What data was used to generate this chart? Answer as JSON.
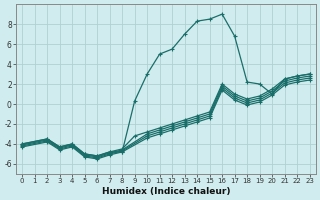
{
  "xlabel": "Humidex (Indice chaleur)",
  "background_color": "#d0ecee",
  "grid_color": "#b0d0d2",
  "line_color": "#1a6e6a",
  "xlim": [
    -0.5,
    23.5
  ],
  "ylim": [
    -7,
    10
  ],
  "yticks": [
    -6,
    -4,
    -2,
    0,
    2,
    4,
    6,
    8
  ],
  "xticks": [
    0,
    1,
    2,
    3,
    4,
    5,
    6,
    7,
    8,
    9,
    10,
    11,
    12,
    13,
    14,
    15,
    16,
    17,
    18,
    19,
    20,
    21,
    22,
    23
  ],
  "main_x": [
    0,
    2,
    3,
    4,
    5,
    6,
    7,
    8,
    9,
    10,
    11,
    12,
    13,
    14,
    15,
    16,
    17,
    18,
    19,
    20,
    21,
    22,
    23
  ],
  "main_y": [
    -4,
    -3.5,
    -4.3,
    -4.0,
    -5.0,
    -5.2,
    -4.8,
    -4.8,
    0.3,
    3.0,
    5.0,
    5.5,
    7.0,
    8.3,
    8.5,
    9.0,
    6.8,
    2.2,
    2.0,
    1.0,
    2.5,
    2.8,
    3.0
  ],
  "lin1_x": [
    0,
    2,
    3,
    4,
    5,
    6,
    7,
    8,
    9,
    10,
    11,
    12,
    13,
    14,
    15,
    16,
    17,
    18,
    19,
    20,
    21,
    22,
    23
  ],
  "lin1_y": [
    -4,
    -3.5,
    -4.3,
    -4.0,
    -5.0,
    -5.2,
    -4.8,
    -4.5,
    -3.2,
    -2.8,
    -2.4,
    -2.0,
    -1.6,
    -1.2,
    -0.8,
    2.0,
    1.0,
    0.5,
    0.8,
    1.5,
    2.5,
    2.8,
    3.0
  ],
  "lin2_x": [
    0,
    2,
    3,
    4,
    5,
    6,
    7,
    8,
    10,
    11,
    12,
    13,
    14,
    15,
    16,
    17,
    18,
    19,
    20,
    21,
    22,
    23
  ],
  "lin2_y": [
    -4.1,
    -3.6,
    -4.4,
    -4.1,
    -5.1,
    -5.3,
    -4.9,
    -4.6,
    -3.0,
    -2.6,
    -2.2,
    -1.8,
    -1.4,
    -1.0,
    1.8,
    0.8,
    0.3,
    0.6,
    1.3,
    2.3,
    2.6,
    2.8
  ],
  "lin3_x": [
    0,
    2,
    3,
    4,
    5,
    6,
    7,
    8,
    10,
    11,
    12,
    13,
    14,
    15,
    16,
    17,
    18,
    19,
    20,
    21,
    22,
    23
  ],
  "lin3_y": [
    -4.2,
    -3.7,
    -4.5,
    -4.2,
    -5.2,
    -5.4,
    -5.0,
    -4.7,
    -3.2,
    -2.8,
    -2.4,
    -2.0,
    -1.6,
    -1.2,
    1.6,
    0.6,
    0.1,
    0.4,
    1.1,
    2.1,
    2.4,
    2.6
  ],
  "lin4_x": [
    0,
    2,
    3,
    4,
    5,
    6,
    7,
    8,
    10,
    11,
    12,
    13,
    14,
    15,
    16,
    17,
    18,
    19,
    20,
    21,
    22,
    23
  ],
  "lin4_y": [
    -4.3,
    -3.8,
    -4.6,
    -4.3,
    -5.3,
    -5.5,
    -5.1,
    -4.8,
    -3.4,
    -3.0,
    -2.6,
    -2.2,
    -1.8,
    -1.4,
    1.4,
    0.4,
    -0.1,
    0.2,
    0.9,
    1.9,
    2.2,
    2.4
  ]
}
